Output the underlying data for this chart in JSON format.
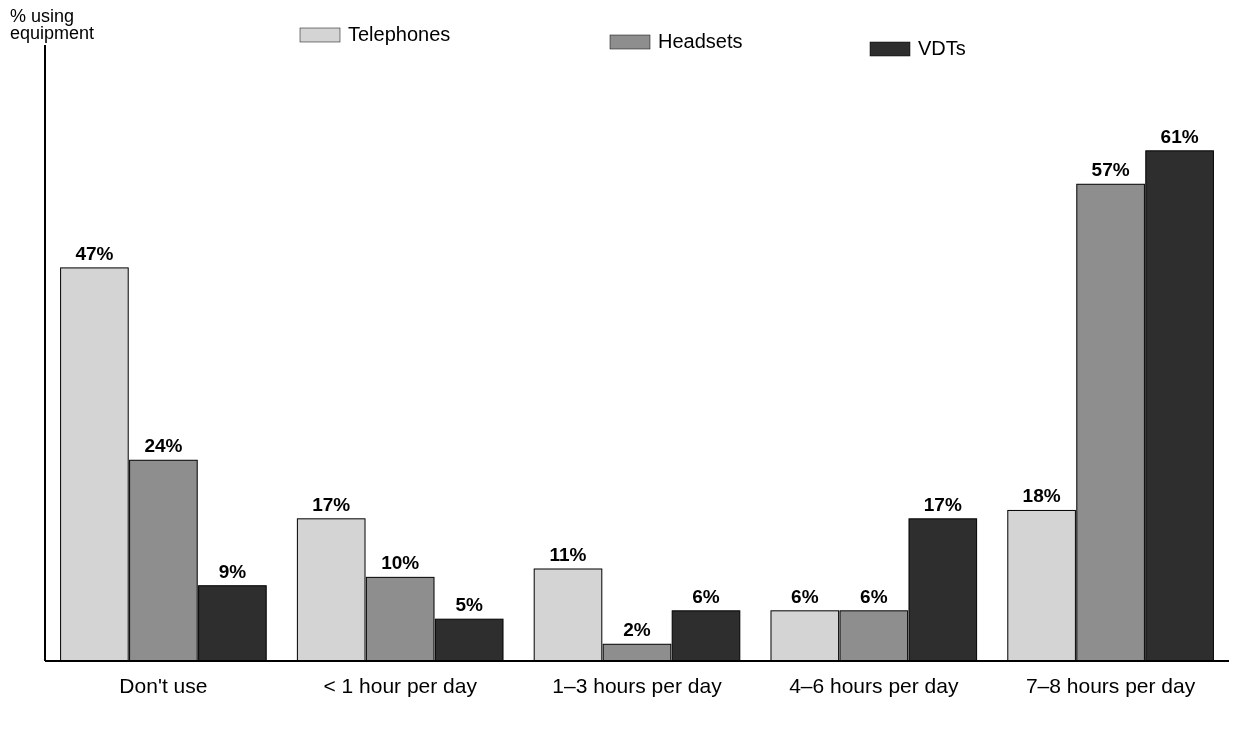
{
  "chart_data": {
    "type": "bar",
    "annotations": [
      "% using equipment"
    ],
    "categories": [
      "Don't use",
      "< 1 hour per day",
      "1–3 hours per day",
      "4–6 hours per day",
      "7–8 hours per day"
    ],
    "series": [
      {
        "name": "Telephones",
        "color": "#d4d4d4",
        "values": [
          47,
          17,
          11,
          6,
          18
        ],
        "value_labels": [
          "47%",
          "17%",
          "11%",
          "6%",
          "18%"
        ]
      },
      {
        "name": "Headsets",
        "color": "#8e8e8e",
        "values": [
          24,
          10,
          2,
          6,
          57
        ],
        "value_labels": [
          "24%",
          "10%",
          "2%",
          "6%",
          "57%"
        ]
      },
      {
        "name": "VDTs",
        "color": "#2e2e2e",
        "values": [
          9,
          5,
          6,
          17,
          61
        ],
        "value_labels": [
          "9%",
          "5%",
          "6%",
          "17%",
          "61%"
        ]
      }
    ],
    "legend": "top"
  }
}
